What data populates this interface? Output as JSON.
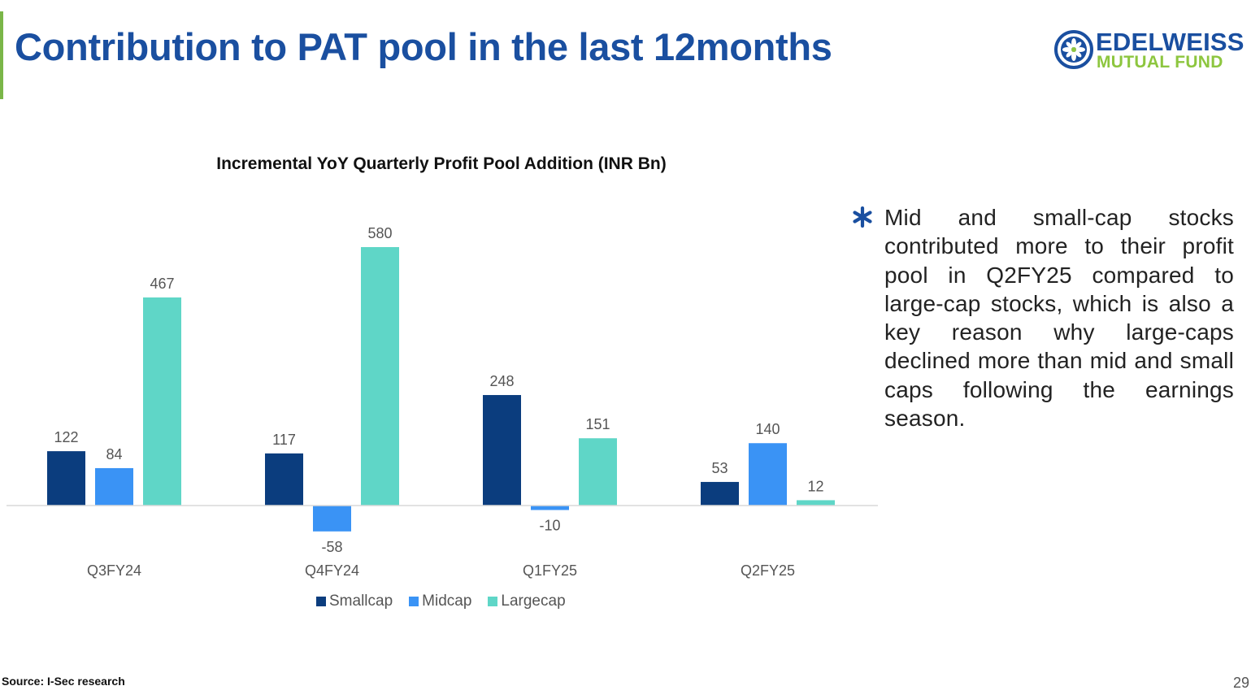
{
  "slide": {
    "title": "Contribution to PAT pool in the last 12months",
    "source": "Source: I-Sec research",
    "page_number": "29",
    "accent_color": "#7AB648",
    "title_color": "#1A4FA0"
  },
  "logo": {
    "line1": "EDELWEISS",
    "line2": "MUTUAL FUND",
    "icon": "edelweiss-flower-icon",
    "primary_color": "#1A4FA0",
    "secondary_color": "#8DC63F"
  },
  "bullet": {
    "icon": "asterisk-icon",
    "text": "Mid and small-cap stocks contributed more to their profit pool in Q2FY25 compared to large-cap stocks, which is also a key reason why large-caps declined more than mid and small caps following the earnings season."
  },
  "chart_data": {
    "type": "bar",
    "title": "Incremental YoY Quarterly Profit Pool Addition (INR Bn)",
    "xlabel": "",
    "ylabel": "",
    "categories": [
      "Q3FY24",
      "Q4FY24",
      "Q1FY25",
      "Q2FY25"
    ],
    "series": [
      {
        "name": "Smallcap",
        "color": "#0B3D7E",
        "values": [
          122,
          117,
          248,
          53
        ]
      },
      {
        "name": "Midcap",
        "color": "#3A93F5",
        "values": [
          84,
          -58,
          -10,
          140
        ]
      },
      {
        "name": "Largecap",
        "color": "#5FD6C7",
        "values": [
          467,
          580,
          151,
          12
        ]
      }
    ],
    "ylim": [
      -58,
      580
    ],
    "grid": false,
    "legend_position": "bottom",
    "data_labels": true
  }
}
